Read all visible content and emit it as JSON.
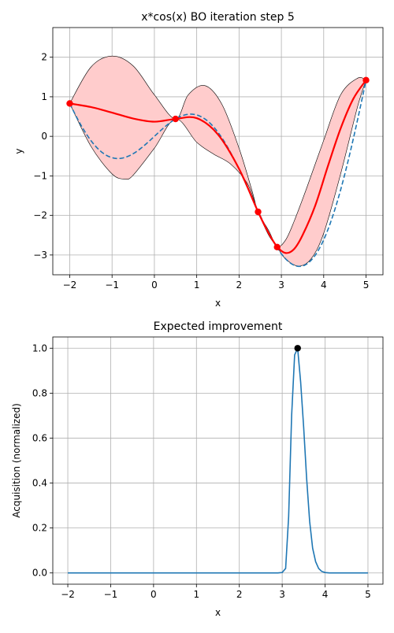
{
  "chart_data": [
    {
      "type": "line",
      "title": "x*cos(x) BO iteration step 5",
      "xlabel": "x",
      "ylabel": "y",
      "xlim": [
        -2.4,
        5.4
      ],
      "ylim": [
        -3.5,
        2.75
      ],
      "grid": true,
      "xticks": [
        -2,
        -1,
        0,
        1,
        2,
        3,
        4,
        5
      ],
      "yticks": [
        -3,
        -2,
        -1,
        0,
        1,
        2
      ],
      "colors": {
        "mean": "#ff0000",
        "band_fill": "#ffcccc",
        "band_edge": "#000000",
        "true_function": "#1f77b4",
        "observations": "#ff0000"
      },
      "series": [
        {
          "kind": "true_function",
          "function": "x*cos(x)",
          "line_style": "dashed"
        },
        {
          "kind": "mean",
          "x": [
            -2,
            -1.5,
            -1,
            -0.5,
            0,
            0.5,
            1,
            1.5,
            2,
            2.45,
            2.7,
            2.9,
            3.1,
            3.3,
            3.5,
            3.8,
            4.1,
            4.4,
            4.7,
            5.0
          ],
          "y": [
            0.83,
            0.74,
            0.6,
            0.45,
            0.37,
            0.44,
            0.46,
            0.05,
            -0.82,
            -1.91,
            -2.45,
            -2.79,
            -2.95,
            -2.85,
            -2.5,
            -1.75,
            -0.75,
            0.2,
            0.95,
            1.42
          ]
        },
        {
          "kind": "band_upper",
          "x": [
            -2,
            -1.5,
            -1,
            -0.5,
            0,
            0.5,
            0.8,
            1.2,
            1.6,
            2.0,
            2.3,
            2.45,
            2.7,
            2.9,
            3.1,
            3.3,
            3.6,
            4.0,
            4.4,
            4.8,
            5.0
          ],
          "y": [
            0.83,
            1.75,
            2.03,
            1.78,
            1.05,
            0.44,
            1.05,
            1.28,
            0.8,
            -0.3,
            -1.35,
            -1.91,
            -2.38,
            -2.78,
            -2.62,
            -2.15,
            -1.3,
            -0.1,
            1.05,
            1.47,
            1.42
          ]
        },
        {
          "kind": "band_lower",
          "x": [
            -2,
            -1.5,
            -1,
            -0.7,
            -0.5,
            0,
            0.5,
            1.0,
            1.4,
            1.8,
            2.2,
            2.45,
            2.7,
            2.9,
            3.1,
            3.4,
            3.7,
            4.0,
            4.4,
            4.8,
            5.0
          ],
          "y": [
            0.83,
            -0.25,
            -0.95,
            -1.08,
            -0.98,
            -0.3,
            0.44,
            -0.15,
            -0.45,
            -0.7,
            -1.2,
            -1.91,
            -2.5,
            -2.8,
            -3.1,
            -3.28,
            -3.1,
            -2.45,
            -0.95,
            0.75,
            1.42
          ]
        },
        {
          "kind": "observations",
          "x": [
            -2.0,
            0.5,
            2.45,
            2.9,
            5.0
          ],
          "y": [
            0.83,
            0.44,
            -1.91,
            -2.8,
            1.42
          ]
        }
      ]
    },
    {
      "type": "line",
      "title": "Expected improvement",
      "xlabel": "x",
      "ylabel": "Acquisition (normalized)",
      "xlim": [
        -2.35,
        5.35
      ],
      "ylim": [
        -0.05,
        1.05
      ],
      "grid": true,
      "xticks": [
        -2,
        -1,
        0,
        1,
        2,
        3,
        4,
        5
      ],
      "yticks": [
        0.0,
        0.2,
        0.4,
        0.6,
        0.8,
        1.0
      ],
      "colors": {
        "line": "#1f77b4",
        "marker": "#000000"
      },
      "series": [
        {
          "kind": "acquisition",
          "x": [
            -2,
            2.9,
            3.0,
            3.08,
            3.15,
            3.22,
            3.29,
            3.36,
            3.43,
            3.5,
            3.57,
            3.64,
            3.71,
            3.78,
            3.85,
            3.92,
            4.0,
            4.1,
            5.0
          ],
          "y": [
            0,
            0,
            0.002,
            0.02,
            0.25,
            0.7,
            0.97,
            1.0,
            0.85,
            0.65,
            0.42,
            0.23,
            0.11,
            0.05,
            0.02,
            0.007,
            0.002,
            0,
            0
          ]
        },
        {
          "kind": "max_point",
          "x": [
            3.36
          ],
          "y": [
            1.0
          ]
        }
      ]
    }
  ]
}
